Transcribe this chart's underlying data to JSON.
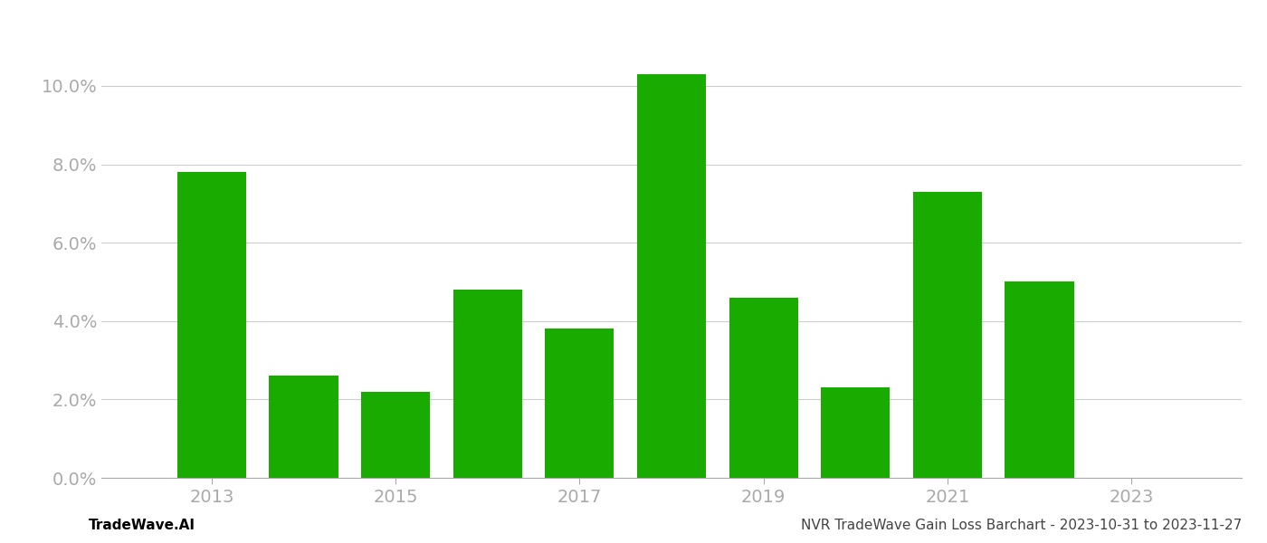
{
  "years": [
    2013,
    2014,
    2015,
    2016,
    2017,
    2018,
    2019,
    2020,
    2021,
    2022
  ],
  "values": [
    0.078,
    0.026,
    0.022,
    0.048,
    0.038,
    0.103,
    0.046,
    0.023,
    0.073,
    0.05
  ],
  "bar_color": "#1aab00",
  "background_color": "#ffffff",
  "grid_color": "#cccccc",
  "axis_color": "#aaaaaa",
  "tick_label_color": "#aaaaaa",
  "ylim": [
    0,
    0.115
  ],
  "yticks": [
    0.0,
    0.02,
    0.04,
    0.06,
    0.08,
    0.1
  ],
  "xlabel_ticks": [
    2013,
    2015,
    2017,
    2019,
    2021,
    2023
  ],
  "xlim": [
    2011.8,
    2024.2
  ],
  "footer_left": "TradeWave.AI",
  "footer_right": "NVR TradeWave Gain Loss Barchart - 2023-10-31 to 2023-11-27",
  "bar_width": 0.75,
  "tick_fontsize": 14,
  "footer_fontsize": 11
}
